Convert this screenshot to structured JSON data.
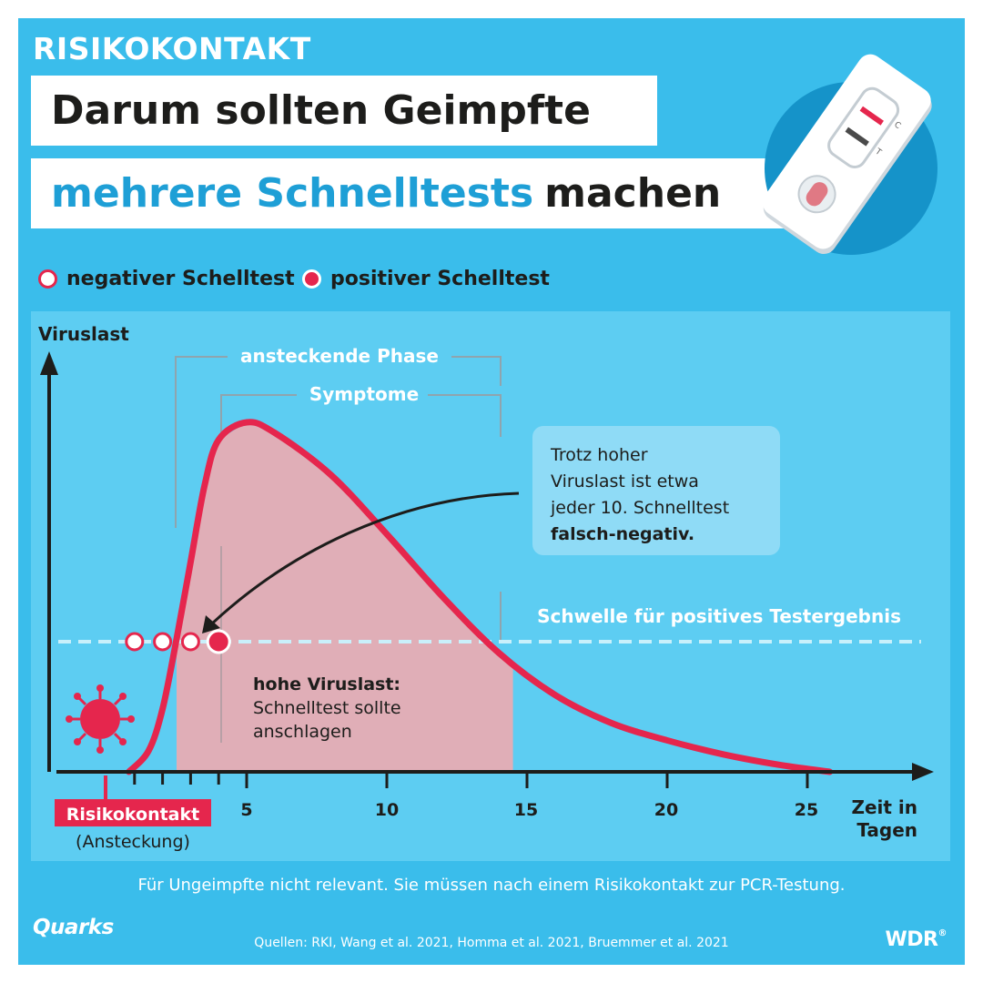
{
  "kicker": "RISIKOKONTAKT",
  "title": {
    "line1": "Darum sollten Geimpfte",
    "line2_highlight": "mehrere Schnelltests",
    "line2_rest": "machen"
  },
  "legend": {
    "negative": "negativer Schelltest",
    "positive": "positiver Schelltest"
  },
  "test_icon": {
    "mark_c": "C",
    "mark_t": "T"
  },
  "diagram": {
    "y_axis_label": "Viruslast",
    "x_axis_label_line1": "Zeit in",
    "x_axis_label_line2": "Tagen",
    "x_ticks": [
      "5",
      "10",
      "15",
      "20",
      "25"
    ],
    "phase_infectious": "ansteckende Phase",
    "phase_symptoms": "Symptome",
    "threshold_label": "Schwelle für positives Testergebnis",
    "high_load_title": "hohe Viruslast:",
    "high_load_line1": "Schnelltest sollte",
    "high_load_line2": "anschlagen",
    "risk_contact_label": "Risikokontakt",
    "risk_contact_sub": "(Ansteckung)",
    "callout_lines": [
      "Trotz hoher",
      "Viruslast ist etwa",
      "jeder 10. Schnelltest"
    ],
    "callout_bold": "falsch-negativ."
  },
  "footnote": "Für Ungeimpfte nicht relevant. Sie müssen nach einem Risikokontakt zur PCR-Testung.",
  "sources": "Quellen: RKI, Wang et al. 2021, Homma et al. 2021, Bruemmer et al. 2021",
  "logos": {
    "quarks": "Quarks",
    "wdr": "WDR"
  },
  "colors": {
    "background": "#3ABDEB",
    "panel": "#5DCDF2",
    "accent_red": "#E5264D",
    "title_blue": "#1E9FD6",
    "phase_fill": "#E0AEB7",
    "threshold": "#C9F0FB"
  },
  "chart_data": {
    "type": "line",
    "x_unit": "days",
    "series": [
      {
        "x": [
          0.8,
          1.5,
          2,
          2.5,
          3,
          3.5,
          4,
          5,
          6,
          8,
          10,
          12,
          14,
          16,
          18,
          20,
          22,
          24,
          25.8
        ],
        "y": [
          0,
          0.06,
          0.18,
          0.38,
          0.6,
          0.82,
          0.95,
          1.0,
          0.97,
          0.85,
          0.68,
          0.5,
          0.34,
          0.22,
          0.14,
          0.09,
          0.05,
          0.02,
          0.0
        ]
      }
    ],
    "threshold_y": 0.38,
    "negative_tests_days": [
      1,
      2,
      3
    ],
    "positive_test_day": 4,
    "infectious_phase_days": [
      2.5,
      14.5
    ],
    "symptoms_days": [
      4,
      14.5
    ],
    "xlim": [
      0,
      28
    ],
    "xticks": [
      5,
      10,
      15,
      20,
      25
    ]
  }
}
